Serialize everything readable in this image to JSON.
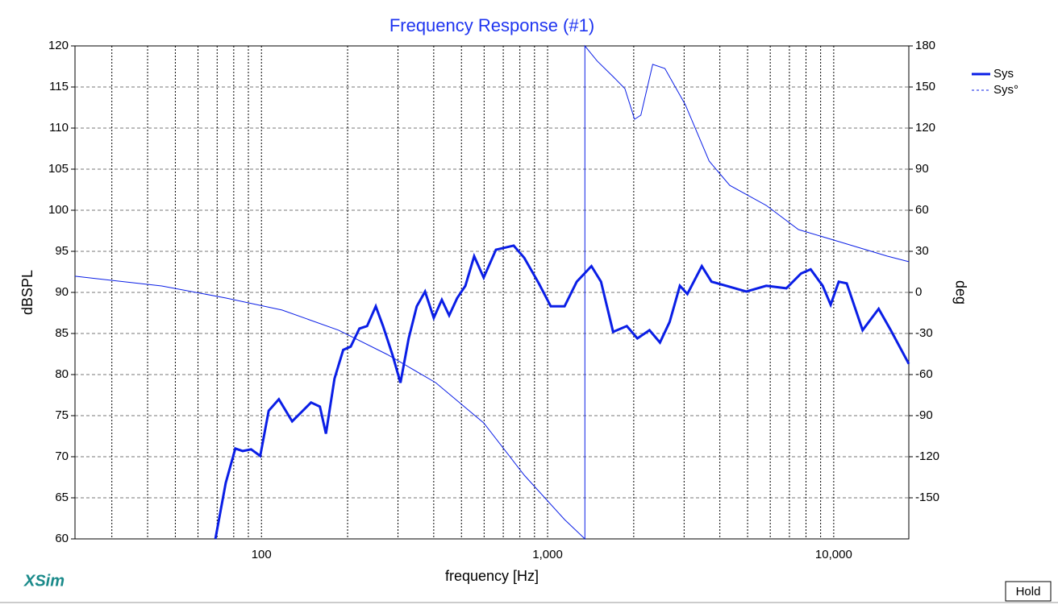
{
  "chart_data": {
    "type": "line",
    "title": "Frequency Response (#1)",
    "x_label": "frequency [Hz]",
    "y_label": "dBSPL",
    "y2_label": "deg",
    "xscale": "log",
    "xlim": [
      22.3,
      18300
    ],
    "ylim": [
      60,
      120
    ],
    "y2lim": [
      -180,
      180
    ],
    "xticks": [
      100,
      {
        "value": 1000,
        "label": "1,000"
      },
      {
        "value": 10000,
        "label": "10,000"
      }
    ],
    "xminor": [
      30,
      40,
      50,
      60,
      70,
      80,
      90,
      200,
      300,
      400,
      500,
      600,
      700,
      800,
      900,
      2000,
      3000,
      4000,
      5000,
      6000,
      7000,
      8000,
      9000
    ],
    "yticks": [
      60,
      65,
      70,
      75,
      80,
      85,
      90,
      95,
      100,
      105,
      110,
      115,
      120
    ],
    "y2ticks": [
      -150,
      -120,
      -90,
      -60,
      -30,
      0,
      30,
      60,
      90,
      120,
      150,
      180
    ],
    "grid": true,
    "series": [
      {
        "name": "Sys",
        "color": "#0a1ee6",
        "width": 3,
        "dash": false,
        "x": [
          69,
          75,
          81,
          86,
          92,
          99,
          106,
          115,
          128,
          149,
          160,
          168,
          180,
          193,
          205,
          220,
          234,
          251,
          266,
          287,
          306,
          327,
          349,
          373,
          400,
          427,
          453,
          483,
          516,
          554,
          598,
          660,
          761,
          829,
          932,
          1026,
          1146,
          1264,
          1423,
          1537,
          1694,
          1892,
          2060,
          2270,
          2470,
          2670,
          2900,
          3080,
          3460,
          3740,
          4210,
          4950,
          5810,
          6830,
          7690,
          8310,
          9150,
          9760,
          10410,
          11100,
          12620,
          14360,
          15820,
          18300
        ],
        "values": [
          60,
          66.8,
          71,
          70.7,
          70.9,
          70.1,
          75.6,
          77,
          74.3,
          76.6,
          76.1,
          72.8,
          79.5,
          83,
          83.4,
          85.6,
          85.9,
          88.3,
          85.9,
          82.4,
          79,
          84.4,
          88.3,
          90.1,
          86.9,
          89.1,
          87.2,
          89.3,
          90.8,
          94.4,
          91.8,
          95.2,
          95.7,
          94.2,
          91.1,
          88.3,
          88.3,
          91.3,
          93.2,
          91.3,
          85.2,
          85.9,
          84.4,
          85.4,
          83.9,
          86.4,
          90.8,
          89.8,
          93.2,
          91.3,
          90.8,
          90.1,
          90.8,
          90.5,
          92.3,
          92.8,
          90.8,
          88.5,
          91.3,
          91.1,
          85.4,
          88,
          85.4,
          81.3
        ]
      },
      {
        "name": "Sys°",
        "color": "#0a1ee6",
        "width": 1,
        "dash": true,
        "axis": "y2",
        "x": [
          22.3,
          44.8,
          75.2,
          118,
          186,
          275,
          406,
          598,
          829,
          1146,
          1350,
          1350,
          1490,
          1694,
          1863,
          2013,
          2118,
          2330,
          2570,
          3030,
          3670,
          4330,
          5810,
          7530,
          10410,
          15400,
          18300
        ],
        "values": [
          11.8,
          4.7,
          -4.1,
          -12.9,
          -27.6,
          -45.3,
          -65.9,
          -95.3,
          -133.5,
          -165.9,
          -180,
          180,
          169,
          157.6,
          148.8,
          126.5,
          129.4,
          166.5,
          163.5,
          137,
          95.9,
          78.2,
          63.5,
          45.9,
          37.1,
          26.5,
          22.4
        ]
      }
    ],
    "legend": "right",
    "brand": "XSim",
    "button": "Hold"
  }
}
